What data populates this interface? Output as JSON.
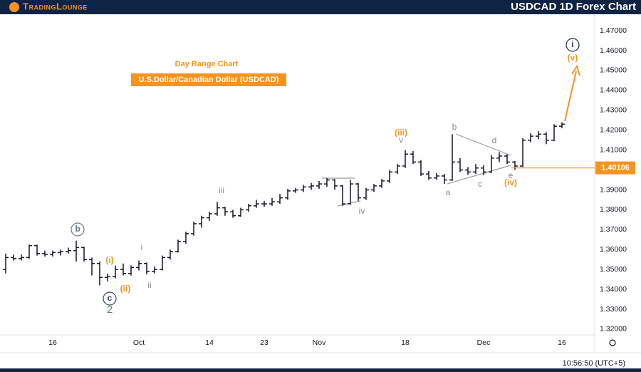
{
  "header": {
    "brand": "TradingLounge",
    "title": "USDCAD 1D Forex Chart"
  },
  "footer": {
    "time": "10:56:50 (UTC+5)"
  },
  "chart_data": {
    "type": "ohlc",
    "title": "Day Range Chart",
    "subtitle": "U.S.Dollar/Canadian Dollar (USDCAD)",
    "categories": [
      null,
      null,
      null,
      null,
      null,
      null,
      "16",
      null,
      null,
      null,
      null,
      null,
      null,
      null,
      null,
      null,
      null,
      "Oct",
      null,
      null,
      null,
      null,
      null,
      null,
      null,
      null,
      "14",
      null,
      null,
      null,
      null,
      null,
      null,
      "23",
      null,
      null,
      null,
      null,
      null,
      null,
      "Nov",
      null,
      null,
      null,
      null,
      null,
      null,
      null,
      null,
      null,
      null,
      "18",
      null,
      null,
      null,
      null,
      null,
      null,
      null,
      null,
      null,
      "Dec",
      null,
      null,
      null,
      null,
      null,
      null,
      null,
      null,
      null,
      "16"
    ],
    "values": [
      [
        1.35,
        1.358,
        1.348,
        1.356
      ],
      [
        1.356,
        1.3575,
        1.3545,
        1.3555
      ],
      [
        1.3555,
        1.3575,
        1.3545,
        1.356
      ],
      [
        1.356,
        1.3625,
        1.3555,
        1.362
      ],
      [
        1.362,
        1.3625,
        1.357,
        1.358
      ],
      [
        1.358,
        1.3595,
        1.3565,
        1.3575
      ],
      [
        1.3575,
        1.3595,
        1.3565,
        1.3585
      ],
      [
        1.3585,
        1.36,
        1.357,
        1.359
      ],
      [
        1.359,
        1.361,
        1.358,
        1.3595
      ],
      [
        1.3595,
        1.3645,
        1.354,
        1.361
      ],
      [
        1.361,
        1.3615,
        1.354,
        1.355
      ],
      [
        1.355,
        1.356,
        1.347,
        1.353
      ],
      [
        1.353,
        1.354,
        1.342,
        1.346
      ],
      [
        1.346,
        1.348,
        1.344,
        1.3465
      ],
      [
        1.3465,
        1.352,
        1.3455,
        1.35
      ],
      [
        1.35,
        1.353,
        1.347,
        1.348
      ],
      [
        1.348,
        1.352,
        1.347,
        1.351
      ],
      [
        1.351,
        1.3545,
        1.3495,
        1.353
      ],
      [
        1.353,
        1.3535,
        1.3475,
        1.349
      ],
      [
        1.349,
        1.3515,
        1.348,
        1.35
      ],
      [
        1.35,
        1.357,
        1.3495,
        1.356
      ],
      [
        1.356,
        1.36,
        1.355,
        1.359
      ],
      [
        1.359,
        1.365,
        1.3585,
        1.364
      ],
      [
        1.364,
        1.369,
        1.363,
        1.368
      ],
      [
        1.368,
        1.374,
        1.367,
        1.373
      ],
      [
        1.373,
        1.377,
        1.371,
        1.376
      ],
      [
        1.376,
        1.379,
        1.3745,
        1.378
      ],
      [
        1.378,
        1.384,
        1.377,
        1.381
      ],
      [
        1.381,
        1.3815,
        1.377,
        1.379
      ],
      [
        1.379,
        1.38,
        1.376,
        1.377
      ],
      [
        1.377,
        1.381,
        1.3765,
        1.38
      ],
      [
        1.38,
        1.383,
        1.379,
        1.382
      ],
      [
        1.382,
        1.385,
        1.381,
        1.383
      ],
      [
        1.383,
        1.3845,
        1.3815,
        1.383
      ],
      [
        1.383,
        1.386,
        1.382,
        1.384
      ],
      [
        1.384,
        1.388,
        1.383,
        1.386
      ],
      [
        1.386,
        1.3905,
        1.385,
        1.3895
      ],
      [
        1.3895,
        1.391,
        1.3885,
        1.39
      ],
      [
        1.39,
        1.3925,
        1.389,
        1.3915
      ],
      [
        1.3915,
        1.3935,
        1.39,
        1.392
      ],
      [
        1.392,
        1.3945,
        1.3905,
        1.393
      ],
      [
        1.393,
        1.396,
        1.3915,
        1.395
      ],
      [
        1.395,
        1.3955,
        1.39,
        1.392
      ],
      [
        1.392,
        1.3925,
        1.382,
        1.383
      ],
      [
        1.383,
        1.395,
        1.3825,
        1.393
      ],
      [
        1.393,
        1.3935,
        1.3845,
        1.386
      ],
      [
        1.386,
        1.391,
        1.385,
        1.39
      ],
      [
        1.39,
        1.393,
        1.389,
        1.392
      ],
      [
        1.392,
        1.3955,
        1.391,
        1.3945
      ],
      [
        1.3945,
        1.4,
        1.3935,
        1.399
      ],
      [
        1.399,
        1.403,
        1.398,
        1.402
      ],
      [
        1.402,
        1.41,
        1.401,
        1.408
      ],
      [
        1.408,
        1.4095,
        1.403,
        1.404
      ],
      [
        1.404,
        1.405,
        1.397,
        1.398
      ],
      [
        1.398,
        1.3995,
        1.395,
        1.396
      ],
      [
        1.396,
        1.3985,
        1.395,
        1.397
      ],
      [
        1.397,
        1.398,
        1.393,
        1.395
      ],
      [
        1.395,
        1.418,
        1.3945,
        1.404
      ],
      [
        1.404,
        1.406,
        1.399,
        1.4
      ],
      [
        1.4,
        1.4015,
        1.3975,
        1.399
      ],
      [
        1.399,
        1.403,
        1.398,
        1.401
      ],
      [
        1.401,
        1.4025,
        1.3975,
        1.399
      ],
      [
        1.399,
        1.4075,
        1.3985,
        1.406
      ],
      [
        1.406,
        1.409,
        1.404,
        1.407
      ],
      [
        1.407,
        1.408,
        1.403,
        1.404
      ],
      [
        1.404,
        1.4045,
        1.4,
        1.402
      ],
      [
        1.402,
        1.416,
        1.4015,
        1.415
      ],
      [
        1.415,
        1.4185,
        1.414,
        1.417
      ],
      [
        1.417,
        1.4195,
        1.4155,
        1.418
      ],
      [
        1.418,
        1.419,
        1.413,
        1.415
      ],
      [
        1.415,
        1.423,
        1.4145,
        1.422
      ],
      [
        1.422,
        1.424,
        1.421,
        1.423
      ]
    ],
    "color": "#131722",
    "ylim": [
      1.3171,
      1.4747
    ],
    "yticks": [
      {
        "value": 1.32,
        "label": "1.32000"
      },
      {
        "value": 1.33,
        "label": "1.33000"
      },
      {
        "value": 1.34,
        "label": "1.34000"
      },
      {
        "value": 1.35,
        "label": "1.35000"
      },
      {
        "value": 1.36,
        "label": "1.36000"
      },
      {
        "value": 1.37,
        "label": "1.37000"
      },
      {
        "value": 1.38,
        "label": "1.38000"
      },
      {
        "value": 1.39,
        "label": "1.39000"
      },
      {
        "value": 1.4,
        "label": "1.40000"
      },
      {
        "value": 1.41,
        "label": "1.41000"
      },
      {
        "value": 1.42,
        "label": "1.42000"
      },
      {
        "value": 1.43,
        "label": "1.43000"
      },
      {
        "value": 1.44,
        "label": "1.44000"
      },
      {
        "value": 1.45,
        "label": "1.45000"
      },
      {
        "value": 1.46,
        "label": "1.46000"
      },
      {
        "value": 1.47,
        "label": "1.47000"
      }
    ],
    "grid": false,
    "price_line": {
      "value": 1.40106,
      "color": "#f7931e"
    },
    "annotations": [
      {
        "text": "i",
        "color": "#1c2a4f",
        "circled": true
      },
      {
        "text": "(v)",
        "color": "#f7931e"
      },
      {
        "text": "(iii)",
        "color": "#f7931e"
      },
      {
        "text": "v",
        "color": "#888888"
      },
      {
        "text": "(iv)",
        "color": "#f7931e"
      },
      {
        "text": "e",
        "color": "#888888"
      },
      {
        "text": "(i)",
        "color": "#f7931e"
      },
      {
        "text": "(ii)",
        "color": "#f7931e"
      },
      {
        "text": "i",
        "color": "#888888"
      },
      {
        "text": "ii",
        "color": "#888888"
      },
      {
        "text": "iii",
        "color": "#888888"
      },
      {
        "text": "iv",
        "color": "#888888"
      },
      {
        "text": "a",
        "color": "#888888"
      },
      {
        "text": "b",
        "color": "#888888"
      },
      {
        "text": "c",
        "color": "#888888"
      },
      {
        "text": "d",
        "color": "#888888"
      },
      {
        "text": "b",
        "color": "#6a7590",
        "circled": true
      },
      {
        "text": "c",
        "color": "#3a4560",
        "circled": true
      },
      {
        "text": "2",
        "color": "#6a7590"
      }
    ]
  }
}
